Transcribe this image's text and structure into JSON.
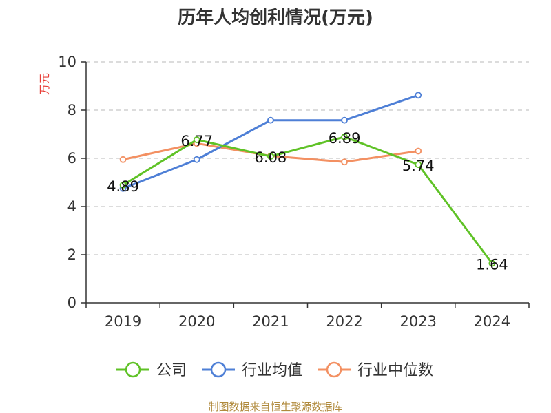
{
  "chart_data": {
    "type": "line",
    "title": "历年人均创利情况(万元)",
    "ylabel": "万元",
    "xlabel": "",
    "categories": [
      "2019",
      "2020",
      "2021",
      "2022",
      "2023",
      "2024"
    ],
    "ylim": [
      0,
      10
    ],
    "yticks": [
      0,
      2,
      4,
      6,
      8,
      10
    ],
    "grid": true,
    "legend_position": "bottom",
    "series": [
      {
        "name": "公司",
        "color": "#5fc226",
        "values": [
          4.89,
          6.77,
          6.08,
          6.89,
          5.74,
          1.64
        ],
        "labels": [
          "4.89",
          "6.77",
          "6.08",
          "6.89",
          "5.74",
          "1.64"
        ]
      },
      {
        "name": "行业均值",
        "color": "#4e7fd6",
        "values": [
          4.75,
          5.95,
          7.58,
          7.58,
          8.62,
          null
        ]
      },
      {
        "name": "行业中位数",
        "color": "#f39062",
        "values": [
          5.95,
          6.62,
          6.1,
          5.85,
          6.3,
          null
        ]
      }
    ]
  },
  "source": "制图数据来自恒生聚源数据库"
}
